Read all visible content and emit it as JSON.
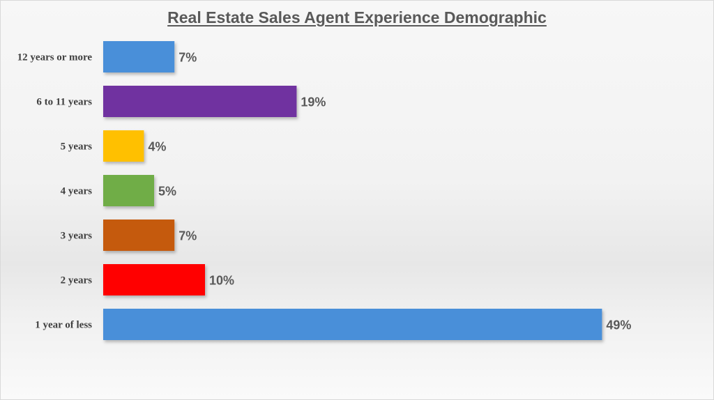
{
  "chart_data": {
    "type": "bar",
    "orientation": "horizontal",
    "title": "Real Estate Sales Agent Experience Demographic",
    "xlabel": "",
    "ylabel": "",
    "xlim": [
      0,
      50
    ],
    "grid": false,
    "legend": "none",
    "categories": [
      "12 years or more",
      "6 to 11 years",
      "5 years",
      "4 years",
      "3 years",
      "2 years",
      "1 year of less"
    ],
    "values": [
      7,
      19,
      4,
      5,
      7,
      10,
      49
    ],
    "value_labels": [
      "7%",
      "19%",
      "4%",
      "5%",
      "7%",
      "10%",
      "49%"
    ],
    "colors": [
      "#4a8fd9",
      "#7030a0",
      "#ffc000",
      "#70ad47",
      "#c55a11",
      "#ff0000",
      "#4a8fd9"
    ]
  }
}
